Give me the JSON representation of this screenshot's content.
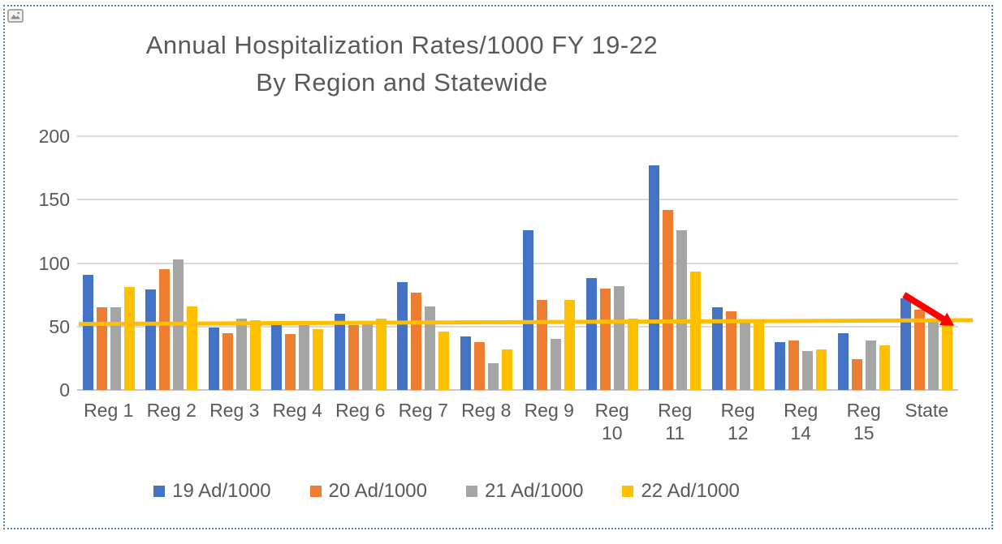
{
  "canvas": {
    "selection_border_color": "#4f81bd",
    "corner_icon": "picture-icon"
  },
  "chart_data": {
    "type": "bar",
    "title": "Annual Hospitalization Rates/1000 FY 19-22",
    "subtitle": "By Region and Statewide",
    "categories": [
      "Reg 1",
      "Reg 2",
      "Reg 3",
      "Reg 4",
      "Reg 6",
      "Reg 7",
      "Reg 8",
      "Reg 9",
      "Reg 10",
      "Reg 11",
      "Reg 12",
      "Reg 14",
      "Reg 15",
      "State"
    ],
    "two_line_labels": [
      "Reg 10",
      "Reg 11",
      "Reg 12",
      "Reg 14",
      "Reg 15"
    ],
    "series": [
      {
        "name": "19 Ad/1000",
        "color": "#4472C4",
        "values": [
          91,
          79,
          49,
          51,
          60,
          85,
          42,
          126,
          88,
          177,
          65,
          38,
          45,
          72
        ]
      },
      {
        "name": "20 Ad/1000",
        "color": "#ED7D31",
        "values": [
          65,
          95,
          45,
          44,
          51,
          77,
          38,
          71,
          80,
          142,
          62,
          39,
          24,
          63
        ]
      },
      {
        "name": "21 Ad/1000",
        "color": "#A5A5A5",
        "values": [
          65,
          103,
          56,
          51,
          52,
          66,
          21,
          40,
          82,
          126,
          54,
          31,
          39,
          56
        ]
      },
      {
        "name": "22 Ad/1000",
        "color": "#FFC000",
        "values": [
          81,
          66,
          55,
          48,
          56,
          46,
          32,
          71,
          56,
          93,
          55,
          32,
          35,
          56
        ]
      }
    ],
    "ylim": [
      0,
      200
    ],
    "yticks": [
      0,
      50,
      100,
      150,
      200
    ],
    "grid": true,
    "legend_position": "bottom",
    "annotations": {
      "trend_line": {
        "color": "#FFBF00",
        "start_value": 52,
        "end_value": 55,
        "description": "yellow reference line spanning all regions"
      },
      "arrow": {
        "color": "#FF0000",
        "direction": "down-right",
        "target": "State",
        "start_value": 75,
        "end_value": 54,
        "description": "red arrow showing decline over State bars"
      }
    }
  }
}
